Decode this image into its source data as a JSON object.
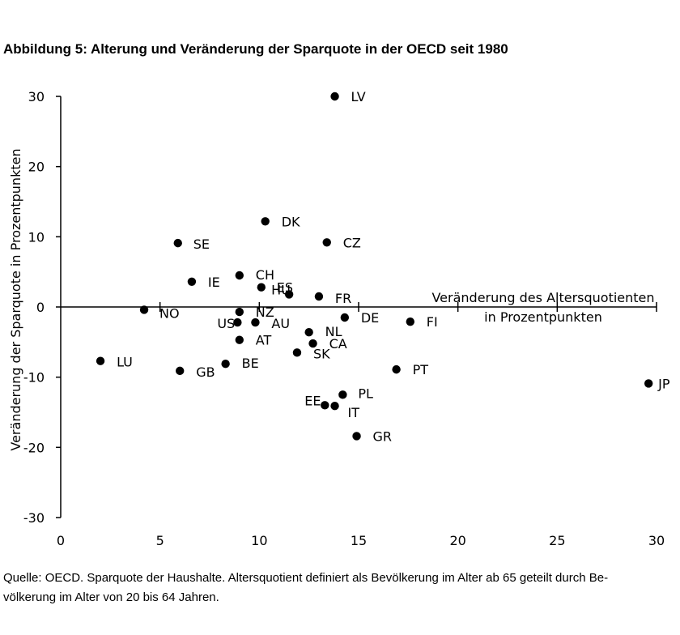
{
  "title": "Abbildung 5: Alterung und Veränderung der Sparquote in der OECD seit 1980",
  "source_line1": "Quelle: OECD. Sparquote der Haushalte. Altersquotient definiert als Bevölkerung im Alter ab 65 geteilt durch Be-",
  "source_line2": "völkerung im Alter von 20 bis 64 Jahren.",
  "chart_data": {
    "type": "scatter",
    "title": "Abbildung 5: Alterung und Veränderung der Sparquote in der OECD seit 1980",
    "xlabel": "Veränderung des Altersquotienten in Prozentpunkten",
    "xlabel_line1": "Veränderung des Altersquotienten",
    "xlabel_line2": "in Prozentpunkten",
    "ylabel": "Veränderung der Sparquote in Prozentpunkten",
    "xlim": [
      0,
      30
    ],
    "ylim": [
      -30,
      30
    ],
    "xticks": [
      0,
      5,
      10,
      15,
      20,
      25,
      30
    ],
    "yticks": [
      30,
      20,
      10,
      0,
      -10,
      -20,
      -30
    ],
    "grid": false,
    "marker_color": "#000000",
    "points": [
      {
        "label": "LV",
        "x": 13.8,
        "y": 30.0
      },
      {
        "label": "DK",
        "x": 10.3,
        "y": 12.2
      },
      {
        "label": "CZ",
        "x": 13.4,
        "y": 9.2
      },
      {
        "label": "SE",
        "x": 5.9,
        "y": 9.1
      },
      {
        "label": "CH",
        "x": 9.0,
        "y": 4.5
      },
      {
        "label": "IE",
        "x": 6.6,
        "y": 3.6
      },
      {
        "label": "ES",
        "x": 10.1,
        "y": 2.8
      },
      {
        "label": "HU",
        "x": 11.5,
        "y": 1.8
      },
      {
        "label": "FR",
        "x": 13.0,
        "y": 1.5
      },
      {
        "label": "NO",
        "x": 4.2,
        "y": -0.4
      },
      {
        "label": "NZ",
        "x": 9.0,
        "y": -0.7
      },
      {
        "label": "DE",
        "x": 14.3,
        "y": -1.5
      },
      {
        "label": "US",
        "x": 8.9,
        "y": -2.2
      },
      {
        "label": "AU",
        "x": 9.8,
        "y": -2.2
      },
      {
        "label": "FI",
        "x": 17.6,
        "y": -2.1
      },
      {
        "label": "NL",
        "x": 12.5,
        "y": -3.6
      },
      {
        "label": "AT",
        "x": 9.0,
        "y": -4.7
      },
      {
        "label": "CA",
        "x": 12.7,
        "y": -5.2
      },
      {
        "label": "SK",
        "x": 11.9,
        "y": -6.5
      },
      {
        "label": "LU",
        "x": 2.0,
        "y": -7.7
      },
      {
        "label": "BE",
        "x": 8.3,
        "y": -8.1
      },
      {
        "label": "GB",
        "x": 6.0,
        "y": -9.1
      },
      {
        "label": "PT",
        "x": 16.9,
        "y": -8.9
      },
      {
        "label": "JP",
        "x": 29.6,
        "y": -10.9
      },
      {
        "label": "PL",
        "x": 14.2,
        "y": -12.5
      },
      {
        "label": "EE",
        "x": 13.3,
        "y": -14.0
      },
      {
        "label": "IT",
        "x": 13.8,
        "y": -14.1
      },
      {
        "label": "GR",
        "x": 14.9,
        "y": -18.4
      }
    ]
  }
}
